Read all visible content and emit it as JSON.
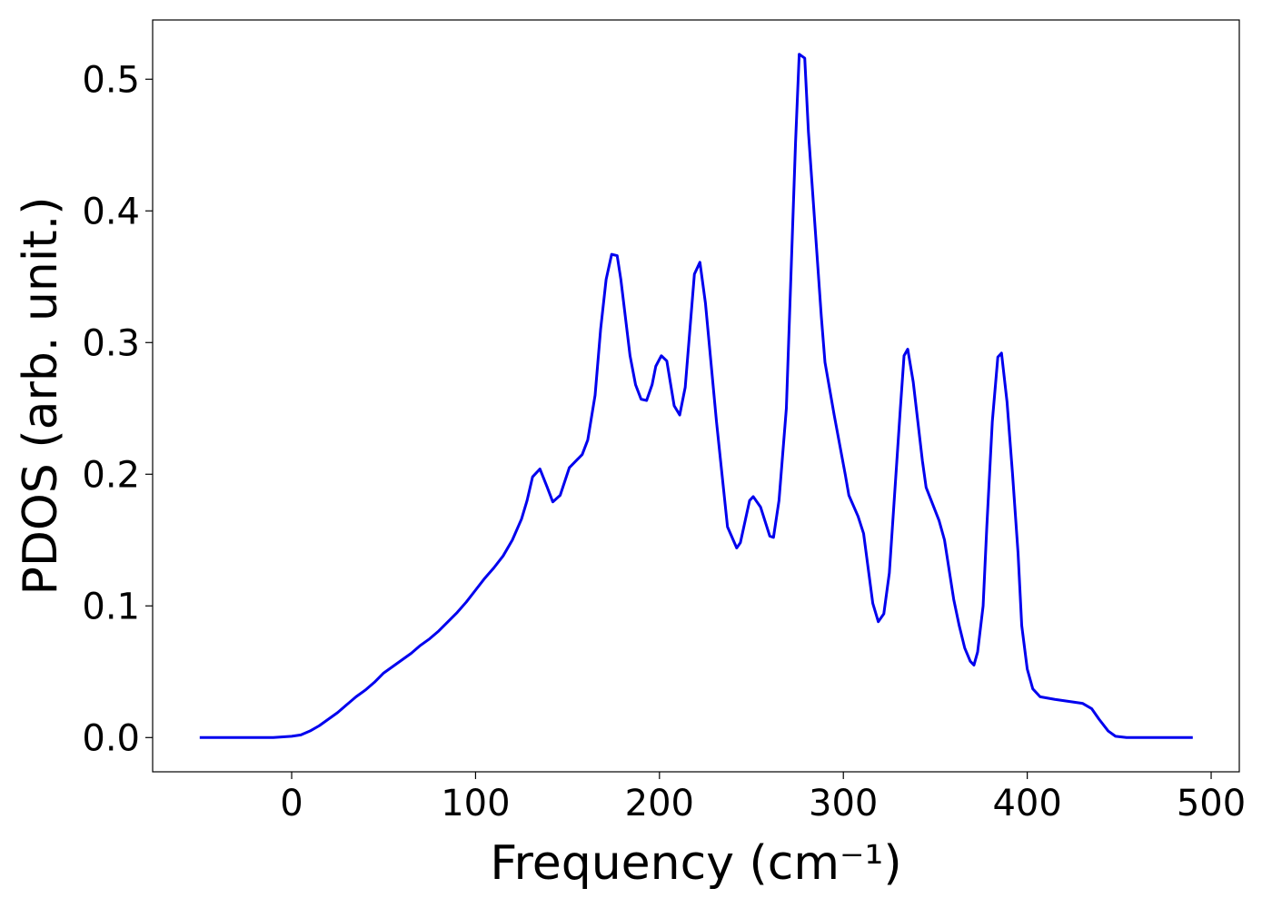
{
  "chart_data": {
    "type": "line",
    "xlabel": "Frequency (cm⁻¹)",
    "ylabel": "PDOS (arb. unit.)",
    "x": [
      -50,
      -10,
      0,
      5,
      10,
      15,
      20,
      25,
      30,
      35,
      40,
      45,
      50,
      55,
      60,
      65,
      70,
      75,
      80,
      85,
      90,
      95,
      100,
      105,
      110,
      115,
      120,
      125,
      128,
      131,
      135,
      139,
      142,
      146,
      151,
      158,
      161,
      165,
      168,
      171,
      174,
      177,
      179,
      184,
      187,
      190,
      193,
      196,
      198,
      201,
      204,
      208,
      211,
      214,
      219,
      222,
      225,
      231,
      237,
      242,
      244,
      249,
      251,
      255,
      260,
      262,
      265,
      269,
      274,
      276,
      279,
      281,
      288,
      290,
      295,
      301,
      303,
      308,
      311,
      316,
      319,
      322,
      325,
      331,
      333,
      335,
      338,
      343,
      345,
      352,
      355,
      360,
      363,
      366,
      369,
      371,
      373,
      376,
      378,
      381,
      384,
      386,
      389,
      392,
      395,
      397,
      400,
      403,
      407,
      415,
      430,
      435,
      439,
      444,
      448,
      454,
      490
    ],
    "series": [
      {
        "name": "PDOS",
        "color": "#0000ee",
        "values": [
          0,
          0,
          0.001,
          0.002,
          0.005,
          0.009,
          0.014,
          0.019,
          0.025,
          0.031,
          0.036,
          0.042,
          0.049,
          0.054,
          0.059,
          0.064,
          0.07,
          0.075,
          0.081,
          0.088,
          0.095,
          0.103,
          0.112,
          0.121,
          0.129,
          0.138,
          0.15,
          0.166,
          0.18,
          0.198,
          0.204,
          0.19,
          0.179,
          0.184,
          0.205,
          0.215,
          0.226,
          0.26,
          0.31,
          0.348,
          0.367,
          0.366,
          0.348,
          0.29,
          0.268,
          0.257,
          0.256,
          0.268,
          0.282,
          0.29,
          0.286,
          0.252,
          0.245,
          0.266,
          0.352,
          0.361,
          0.33,
          0.24,
          0.16,
          0.144,
          0.148,
          0.18,
          0.183,
          0.175,
          0.153,
          0.152,
          0.18,
          0.25,
          0.452,
          0.519,
          0.516,
          0.46,
          0.32,
          0.285,
          0.245,
          0.2,
          0.184,
          0.168,
          0.155,
          0.102,
          0.088,
          0.094,
          0.125,
          0.25,
          0.29,
          0.295,
          0.27,
          0.21,
          0.19,
          0.165,
          0.15,
          0.105,
          0.085,
          0.068,
          0.058,
          0.055,
          0.065,
          0.1,
          0.16,
          0.24,
          0.289,
          0.292,
          0.255,
          0.2,
          0.14,
          0.085,
          0.052,
          0.037,
          0.031,
          0.029,
          0.026,
          0.022,
          0.014,
          0.005,
          0.001,
          0,
          0
        ]
      }
    ],
    "xlim": [
      -75.6,
      515.3
    ],
    "ylim": [
      -0.026,
      0.545
    ],
    "xticks": [
      0,
      100,
      200,
      300,
      400,
      500
    ],
    "yticks": [
      {
        "value": 0,
        "label": "0.0"
      },
      0.1,
      0.2,
      0.3,
      0.4,
      0.5
    ]
  }
}
